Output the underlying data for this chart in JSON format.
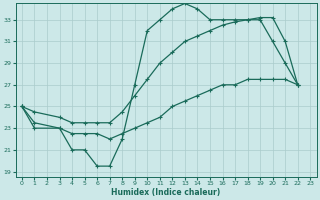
{
  "xlabel": "Humidex (Indice chaleur)",
  "bg_color": "#cce8e8",
  "grid_color": "#aacccc",
  "line_color": "#1a6b5a",
  "xlim": [
    -0.5,
    23.5
  ],
  "ylim": [
    18.5,
    34.5
  ],
  "yticks": [
    19,
    21,
    23,
    25,
    27,
    29,
    31,
    33
  ],
  "xticks": [
    0,
    1,
    2,
    3,
    4,
    5,
    6,
    7,
    8,
    9,
    10,
    11,
    12,
    13,
    14,
    15,
    16,
    17,
    18,
    19,
    20,
    21,
    22,
    23
  ],
  "line1_x": [
    0,
    1,
    3,
    4,
    5,
    6,
    7,
    8,
    9,
    10,
    11,
    12,
    13,
    14,
    15,
    16,
    17,
    18,
    19,
    20,
    21,
    22
  ],
  "line1_y": [
    25,
    23,
    23,
    21,
    21,
    19.5,
    19.5,
    22,
    27,
    32,
    33,
    34,
    34.5,
    34,
    33,
    33,
    33,
    33,
    33,
    31,
    29,
    27
  ],
  "line2_x": [
    0,
    1,
    3,
    4,
    5,
    6,
    7,
    8,
    9,
    10,
    11,
    12,
    13,
    14,
    15,
    16,
    17,
    18,
    19,
    20,
    21,
    22
  ],
  "line2_y": [
    25,
    24.5,
    24,
    23.5,
    23.5,
    23.5,
    23.5,
    24.5,
    26,
    27.5,
    29,
    30,
    31,
    31.5,
    32,
    32.5,
    32.8,
    33,
    33.2,
    33.2,
    31,
    27
  ],
  "line3_x": [
    0,
    1,
    3,
    4,
    5,
    6,
    7,
    8,
    9,
    10,
    11,
    12,
    13,
    14,
    15,
    16,
    17,
    18,
    19,
    20,
    21,
    22
  ],
  "line3_y": [
    25,
    23.5,
    23,
    22.5,
    22.5,
    22.5,
    22,
    22.5,
    23,
    23.5,
    24,
    25,
    25.5,
    26,
    26.5,
    27,
    27,
    27.5,
    27.5,
    27.5,
    27.5,
    27
  ]
}
